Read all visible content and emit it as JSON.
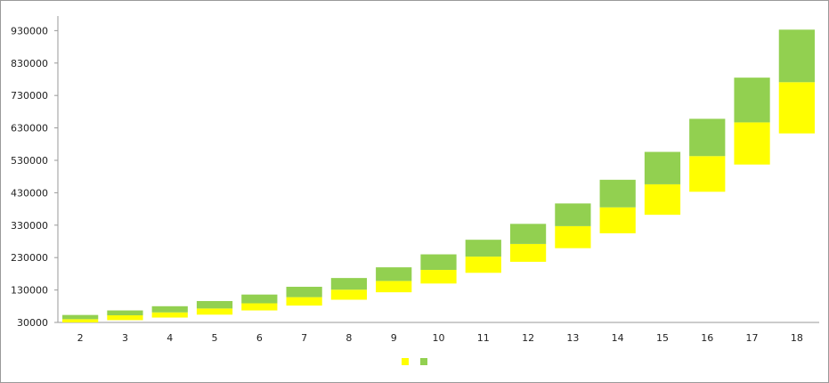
{
  "chart_data": {
    "type": "bar",
    "stacked": true,
    "floating": true,
    "categories": [
      "2",
      "3",
      "4",
      "5",
      "6",
      "7",
      "8",
      "9",
      "10",
      "11",
      "12",
      "13",
      "14",
      "15",
      "16",
      "17",
      "18"
    ],
    "base": [
      30000,
      37000,
      45000,
      54000,
      67000,
      82000,
      100000,
      123000,
      150000,
      183000,
      217000,
      259000,
      305000,
      362000,
      433000,
      517000,
      613000
    ],
    "series": [
      {
        "color": "#ffff00",
        "values": [
          10000,
          15000,
          16000,
          19000,
          22000,
          26000,
          31000,
          35000,
          42000,
          50000,
          55000,
          68000,
          80000,
          94000,
          110000,
          130000,
          158000
        ]
      },
      {
        "color": "#92d050",
        "values": [
          13000,
          15000,
          19000,
          23000,
          27000,
          32000,
          36000,
          42000,
          48000,
          52000,
          62000,
          70000,
          85000,
          100000,
          115000,
          138000,
          162000
        ]
      }
    ],
    "yticks": [
      30000,
      130000,
      230000,
      330000,
      430000,
      530000,
      630000,
      730000,
      830000,
      930000
    ],
    "ylim": [
      30000,
      975000
    ],
    "legend": {
      "position": "bottom"
    },
    "grid": false,
    "title": "",
    "xlabel": "",
    "ylabel": ""
  }
}
